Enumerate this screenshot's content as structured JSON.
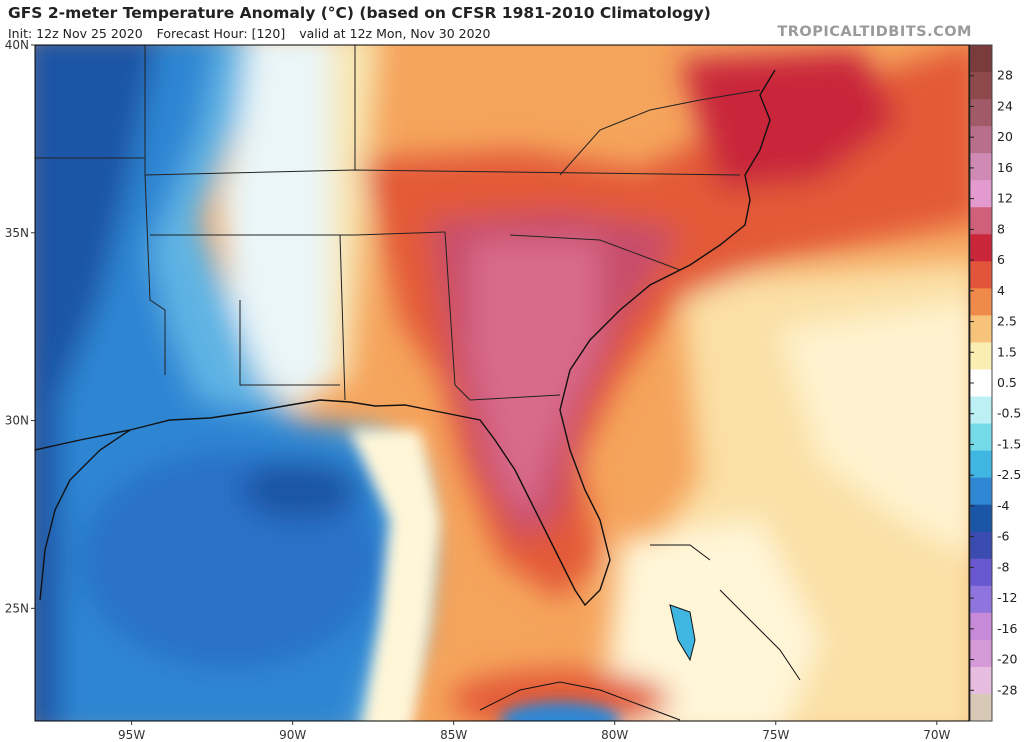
{
  "header": {
    "title": "GFS 2-meter Temperature Anomaly (°C) (based on CFSR 1981-2010 Climatology)",
    "init": "Init: 12z Nov 25 2020",
    "forecast_hour": "Forecast Hour: [120]",
    "valid": "valid at 12z Mon, Nov 30 2020",
    "watermark": "TROPICALTIDBITS.COM"
  },
  "map": {
    "lat_labels": [
      "40N",
      "35N",
      "30N",
      "25N"
    ],
    "lon_labels": [
      "95W",
      "90W",
      "85W",
      "80W",
      "75W",
      "70W"
    ],
    "lat_range": [
      22,
      40
    ],
    "lon_range": [
      -98,
      -69
    ]
  },
  "colorbar": {
    "labels": [
      "28",
      "24",
      "20",
      "16",
      "12",
      "8",
      "6",
      "4",
      "2.5",
      "1.5",
      "0.5",
      "-0.5",
      "-1.5",
      "-2.5",
      "-4",
      "-6",
      "-8",
      "-12",
      "-16",
      "-20",
      "-28"
    ],
    "colors": [
      "#7a3b3b",
      "#8e4a4a",
      "#a05a68",
      "#b86f8a",
      "#cf8bb4",
      "#e29acf",
      "#d0607a",
      "#c9263a",
      "#e3553a",
      "#f08a4b",
      "#f7c27a",
      "#fbeeb3",
      "#ffffff",
      "#bdf0f5",
      "#74dae8",
      "#3fb7e2",
      "#2f86d3",
      "#1a55a6",
      "#3a4cb0",
      "#6a58d0",
      "#8e74dc",
      "#c88ad8",
      "#d79ad8",
      "#e6bde0",
      "#d8c9b6"
    ]
  }
}
